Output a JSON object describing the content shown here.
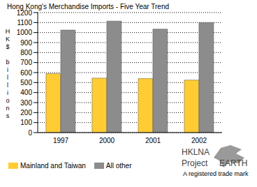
{
  "chart_data": {
    "type": "bar",
    "title": "Hong Kong's Merchandise Imports - Five Year Trend",
    "y_label": "HK$ billions",
    "categories": [
      "1997",
      "2000",
      "2001",
      "2002"
    ],
    "series": [
      {
        "name": "Mainland and Taiwan",
        "color": "#ffcc33",
        "values": [
          590,
          545,
          540,
          525
        ]
      },
      {
        "name": "All other",
        "color": "#8c8c8c",
        "values": [
          1025,
          1115,
          1035,
          1100
        ]
      }
    ],
    "ylim": [
      0,
      1200
    ],
    "yticks": [
      0,
      100,
      200,
      300,
      400,
      500,
      600,
      700,
      800,
      900,
      1000,
      1100,
      1200
    ],
    "grid": true,
    "legend": "bottom left",
    "annotations": [
      "HKLNA",
      "Project",
      "EARTH",
      "A registered trade mark"
    ]
  }
}
